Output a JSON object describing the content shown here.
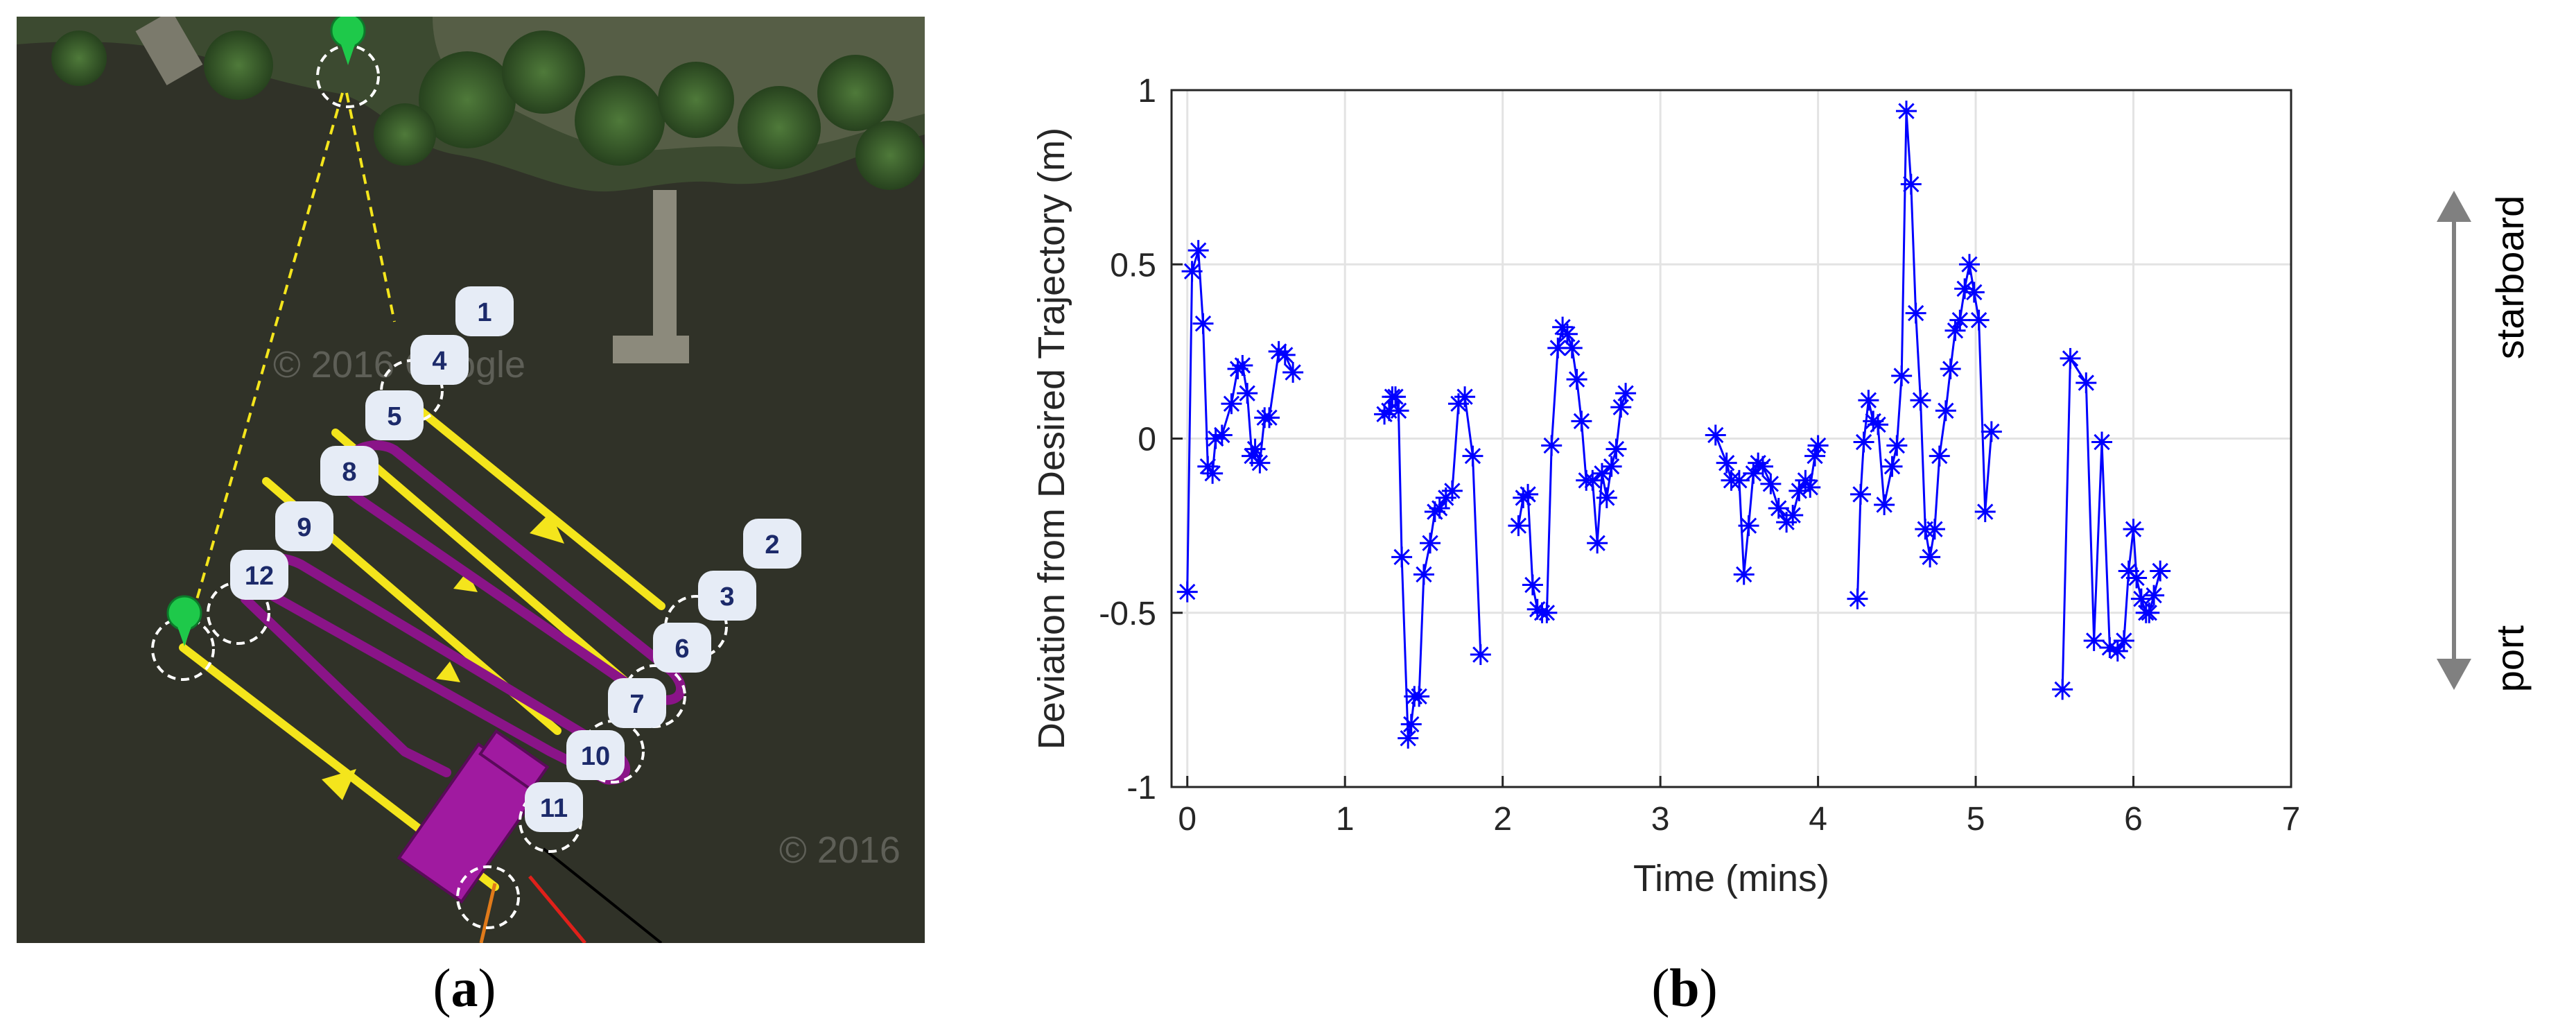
{
  "panel_a": {
    "label_letter": "a",
    "waypoint_labels": [
      "1",
      "4",
      "5",
      "8",
      "9",
      "12",
      "2",
      "3",
      "6",
      "7",
      "10",
      "11"
    ],
    "watermark_1": "© 2016 Google",
    "watermark_2": "© 2016",
    "colors": {
      "water": "#2a2b22",
      "path_yellow": "#f4e51c",
      "path_purple": "#8a1488",
      "waypoint_fill": "#e6ecf6",
      "waypoint_text": "#1c2a6a",
      "marker_green": "#1ec94a"
    }
  },
  "panel_b": {
    "label_letter": "b",
    "direction_labels": {
      "up": "starboard",
      "down": "port"
    },
    "arrow_color": "#808080"
  },
  "chart_data": {
    "type": "line",
    "xlabel": "Time (mins)",
    "ylabel": "Deviation from Desired Trajectory (m)",
    "xlim": [
      -0.1,
      7
    ],
    "ylim": [
      -1,
      1
    ],
    "xticks": [
      0,
      1,
      2,
      3,
      4,
      5,
      6,
      7
    ],
    "yticks": [
      -1,
      -0.5,
      0,
      0.5,
      1
    ],
    "ytick_labels": [
      "-1",
      "-0.5",
      "0",
      "0.5",
      "1"
    ],
    "grid": true,
    "marker": "asterisk",
    "color": "#0000ff",
    "segments": [
      [
        [
          0.0,
          -0.44
        ],
        [
          0.03,
          0.48
        ],
        [
          0.07,
          0.54
        ],
        [
          0.1,
          0.33
        ],
        [
          0.13,
          -0.08
        ],
        [
          0.16,
          -0.1
        ],
        [
          0.18,
          0.0
        ],
        [
          0.22,
          0.01
        ],
        [
          0.28,
          0.1
        ],
        [
          0.32,
          0.2
        ],
        [
          0.35,
          0.21
        ],
        [
          0.38,
          0.13
        ],
        [
          0.41,
          -0.05
        ],
        [
          0.43,
          -0.03
        ],
        [
          0.46,
          -0.07
        ],
        [
          0.49,
          0.06
        ],
        [
          0.52,
          0.06
        ],
        [
          0.58,
          0.25
        ],
        [
          0.62,
          0.24
        ],
        [
          0.67,
          0.19
        ]
      ],
      [
        [
          1.25,
          0.07
        ],
        [
          1.28,
          0.08
        ],
        [
          1.3,
          0.12
        ],
        [
          1.32,
          0.12
        ],
        [
          1.34,
          0.08
        ],
        [
          1.36,
          -0.34
        ],
        [
          1.4,
          -0.86
        ],
        [
          1.42,
          -0.82
        ],
        [
          1.44,
          -0.74
        ],
        [
          1.47,
          -0.74
        ],
        [
          1.5,
          -0.39
        ],
        [
          1.54,
          -0.3
        ],
        [
          1.57,
          -0.21
        ],
        [
          1.6,
          -0.2
        ],
        [
          1.64,
          -0.17
        ],
        [
          1.68,
          -0.15
        ],
        [
          1.72,
          0.1
        ],
        [
          1.76,
          0.12
        ],
        [
          1.81,
          -0.05
        ],
        [
          1.86,
          -0.62
        ]
      ],
      [
        [
          2.1,
          -0.25
        ],
        [
          2.13,
          -0.17
        ],
        [
          2.16,
          -0.16
        ],
        [
          2.19,
          -0.42
        ],
        [
          2.22,
          -0.49
        ],
        [
          2.25,
          -0.5
        ],
        [
          2.28,
          -0.5
        ],
        [
          2.31,
          -0.02
        ],
        [
          2.35,
          0.26
        ],
        [
          2.38,
          0.32
        ],
        [
          2.41,
          0.3
        ],
        [
          2.44,
          0.26
        ],
        [
          2.47,
          0.17
        ],
        [
          2.5,
          0.05
        ],
        [
          2.53,
          -0.12
        ],
        [
          2.57,
          -0.12
        ],
        [
          2.6,
          -0.3
        ],
        [
          2.63,
          -0.1
        ],
        [
          2.66,
          -0.17
        ],
        [
          2.69,
          -0.08
        ],
        [
          2.72,
          -0.03
        ],
        [
          2.75,
          0.09
        ],
        [
          2.78,
          0.13
        ]
      ],
      [
        [
          3.35,
          0.01
        ],
        [
          3.42,
          -0.07
        ],
        [
          3.45,
          -0.12
        ],
        [
          3.5,
          -0.12
        ],
        [
          3.53,
          -0.39
        ],
        [
          3.56,
          -0.25
        ],
        [
          3.59,
          -0.1
        ],
        [
          3.62,
          -0.07
        ],
        [
          3.65,
          -0.08
        ],
        [
          3.7,
          -0.13
        ],
        [
          3.75,
          -0.2
        ],
        [
          3.8,
          -0.24
        ],
        [
          3.84,
          -0.22
        ],
        [
          3.88,
          -0.15
        ],
        [
          3.92,
          -0.12
        ],
        [
          3.95,
          -0.14
        ],
        [
          3.98,
          -0.05
        ],
        [
          4.0,
          -0.02
        ]
      ],
      [
        [
          4.25,
          -0.46
        ],
        [
          4.27,
          -0.16
        ],
        [
          4.29,
          -0.01
        ],
        [
          4.32,
          0.11
        ],
        [
          4.35,
          0.05
        ],
        [
          4.38,
          0.04
        ],
        [
          4.42,
          -0.19
        ],
        [
          4.47,
          -0.08
        ],
        [
          4.5,
          -0.02
        ],
        [
          4.53,
          0.18
        ],
        [
          4.56,
          0.94
        ],
        [
          4.59,
          0.73
        ],
        [
          4.62,
          0.36
        ],
        [
          4.65,
          0.11
        ],
        [
          4.68,
          -0.26
        ],
        [
          4.71,
          -0.34
        ],
        [
          4.74,
          -0.26
        ],
        [
          4.77,
          -0.05
        ],
        [
          4.81,
          0.08
        ],
        [
          4.84,
          0.2
        ],
        [
          4.87,
          0.31
        ],
        [
          4.9,
          0.34
        ],
        [
          4.93,
          0.43
        ],
        [
          4.96,
          0.5
        ],
        [
          4.99,
          0.42
        ],
        [
          5.02,
          0.34
        ],
        [
          5.06,
          -0.21
        ],
        [
          5.1,
          0.02
        ]
      ],
      [
        [
          5.55,
          -0.72
        ],
        [
          5.6,
          0.23
        ],
        [
          5.7,
          0.16
        ],
        [
          5.75,
          -0.58
        ],
        [
          5.8,
          -0.01
        ],
        [
          5.85,
          -0.6
        ],
        [
          5.9,
          -0.61
        ],
        [
          5.94,
          -0.58
        ],
        [
          5.97,
          -0.38
        ],
        [
          6.0,
          -0.26
        ],
        [
          6.02,
          -0.4
        ],
        [
          6.05,
          -0.46
        ],
        [
          6.08,
          -0.5
        ],
        [
          6.1,
          -0.5
        ],
        [
          6.13,
          -0.45
        ],
        [
          6.17,
          -0.38
        ]
      ]
    ]
  }
}
